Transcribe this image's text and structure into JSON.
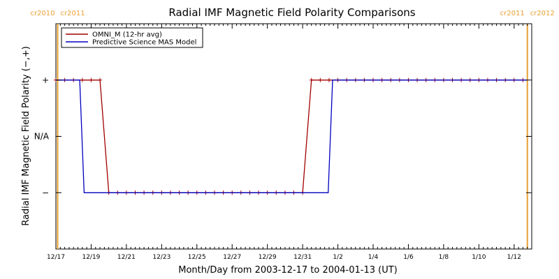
{
  "chart_data": {
    "type": "line",
    "title": "Radial IMF Magnetic Field Polarity Comparisons",
    "xlabel": "Month/Day from 2003-12-17 to 2004-01-13 (UT)",
    "ylabel": "Radial IMF Magnetic Field Polarity (−,+)",
    "x_unit": "days since 2003-12-17 00:00 UT",
    "xlim": [
      0,
      27
    ],
    "ylim": [
      -1,
      1
    ],
    "x_ticks": [
      {
        "x": 0,
        "label": "12/17"
      },
      {
        "x": 2,
        "label": "12/19"
      },
      {
        "x": 4,
        "label": "12/21"
      },
      {
        "x": 6,
        "label": "12/23"
      },
      {
        "x": 8,
        "label": "12/25"
      },
      {
        "x": 10,
        "label": "12/27"
      },
      {
        "x": 12,
        "label": "12/29"
      },
      {
        "x": 14,
        "label": "12/31"
      },
      {
        "x": 16,
        "label": "1/2"
      },
      {
        "x": 18,
        "label": "1/4"
      },
      {
        "x": 20,
        "label": "1/6"
      },
      {
        "x": 22,
        "label": "1/8"
      },
      {
        "x": 24,
        "label": "1/10"
      },
      {
        "x": 26,
        "label": "1/12"
      }
    ],
    "y_ticks": [
      {
        "y": 0.5,
        "label": "+"
      },
      {
        "y": 0,
        "label": "N/A"
      },
      {
        "y": -0.5,
        "label": "−"
      }
    ],
    "carrington_rotations": [
      {
        "x": 0.1,
        "left_label": "cr2010",
        "right_label": "cr2011",
        "color": "#e8a033"
      },
      {
        "x": 26.75,
        "left_label": "cr2011",
        "right_label": "cr2012",
        "color": "#e8a033"
      }
    ],
    "legend": {
      "position": "top-left"
    },
    "series": [
      {
        "name": "OMNI_M (12-hr avg)",
        "color": "#a00000",
        "marker": "plus",
        "x": [
          0,
          0.5,
          1.0,
          1.5,
          2.0,
          2.5,
          3.0,
          3.5,
          4.0,
          4.5,
          5.0,
          5.5,
          6.0,
          6.5,
          7.0,
          7.5,
          8.0,
          8.5,
          9.0,
          9.5,
          10.0,
          10.5,
          11.0,
          11.5,
          12.0,
          12.5,
          13.0,
          13.5,
          14.0,
          14.5,
          15.0,
          15.5,
          16.0,
          16.5,
          17.0,
          17.5,
          18.0,
          18.5,
          19.0,
          19.5,
          20.0,
          20.5,
          21.0,
          21.5,
          22.0,
          22.5,
          23.0,
          23.5,
          24.0,
          24.5,
          25.0,
          25.5,
          26.0,
          26.5
        ],
        "y": [
          0.5,
          0.5,
          0.5,
          0.5,
          0.5,
          0.5,
          -0.5,
          -0.5,
          -0.5,
          -0.5,
          -0.5,
          -0.5,
          -0.5,
          -0.5,
          -0.5,
          -0.5,
          -0.5,
          -0.5,
          -0.5,
          -0.5,
          -0.5,
          -0.5,
          -0.5,
          -0.5,
          -0.5,
          -0.5,
          -0.5,
          -0.5,
          -0.5,
          0.5,
          0.5,
          0.5,
          0.5,
          0.5,
          0.5,
          0.5,
          0.5,
          0.5,
          0.5,
          0.5,
          0.5,
          0.5,
          0.5,
          0.5,
          0.5,
          0.5,
          0.5,
          0.5,
          0.5,
          0.5,
          0.5,
          0.5,
          0.5,
          0.5
        ]
      },
      {
        "name": "Predictive Science MAS Model",
        "color": "#0000c0",
        "marker": "none",
        "x": [
          0,
          1.35,
          1.6,
          15.45,
          15.7,
          26.75
        ],
        "y": [
          0.5,
          0.5,
          -0.5,
          -0.5,
          0.5,
          0.5
        ]
      }
    ]
  }
}
